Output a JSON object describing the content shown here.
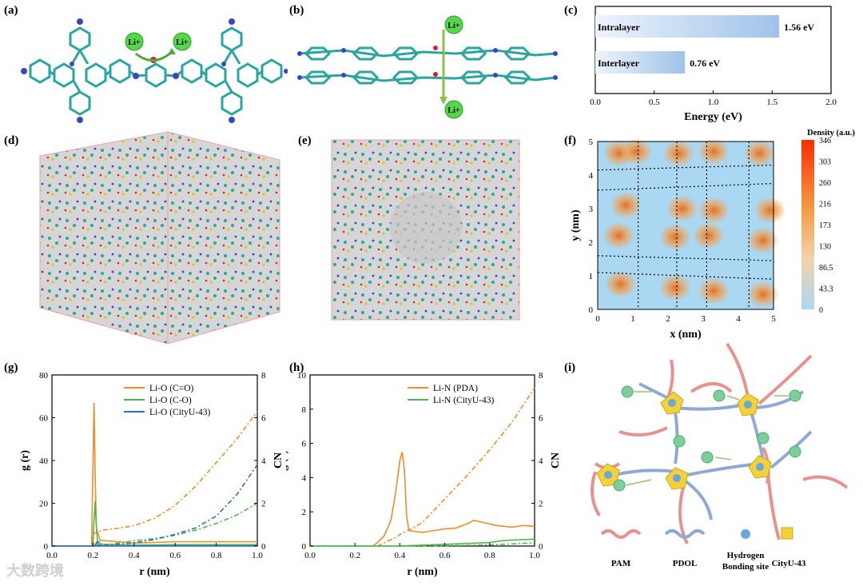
{
  "panel_labels": [
    "(a)",
    "(b)",
    "(c)",
    "(d)",
    "(e)",
    "(f)",
    "(g)",
    "(h)",
    "(i)"
  ],
  "ions": {
    "li": "Li+"
  },
  "chart_data": [
    {
      "id": "c",
      "type": "bar",
      "orientation": "horizontal",
      "categories": [
        "Intralayer",
        "Interlayer"
      ],
      "values": [
        1.56,
        0.76
      ],
      "value_labels": [
        "1.56 eV",
        "0.76 eV"
      ],
      "xlabel": "Energy (eV)",
      "xlim": [
        0.0,
        2.0
      ],
      "xticks": [
        "0.0",
        "0.5",
        "1.0",
        "1.5",
        "2.0"
      ],
      "bar_color": "#9fc3ea"
    },
    {
      "id": "f",
      "type": "heatmap",
      "xlabel": "x (nm)",
      "ylabel": "y (nm)",
      "xlim": [
        0,
        5
      ],
      "ylim": [
        0,
        5
      ],
      "xticks": [
        "0",
        "1",
        "2",
        "3",
        "4",
        "5"
      ],
      "yticks": [
        "0",
        "1",
        "2",
        "3",
        "4",
        "5"
      ],
      "colorbar_title": "Density (a.u.)",
      "colorbar_ticks": [
        "346",
        "303",
        "260",
        "216",
        "173",
        "130",
        "86.5",
        "43.3",
        "0"
      ],
      "colors": {
        "low": "#aad8f2",
        "high": "#ff2a00"
      },
      "clusters": [
        [
          0.6,
          4.65
        ],
        [
          1.1,
          4.7
        ],
        [
          2.3,
          4.65
        ],
        [
          3.3,
          4.7
        ],
        [
          4.6,
          4.65
        ],
        [
          0.8,
          3.1
        ],
        [
          2.4,
          3.0
        ],
        [
          3.3,
          2.95
        ],
        [
          4.9,
          2.95
        ],
        [
          0.6,
          2.2
        ],
        [
          2.2,
          2.15
        ],
        [
          3.15,
          2.2
        ],
        [
          4.7,
          2.05
        ],
        [
          0.65,
          0.75
        ],
        [
          2.2,
          0.65
        ],
        [
          3.3,
          0.55
        ],
        [
          4.7,
          0.45
        ]
      ]
    },
    {
      "id": "g",
      "type": "line",
      "xlabel": "r (nm)",
      "ylabel": "g (r)",
      "y2label": "CN",
      "xlim": [
        0.0,
        1.0
      ],
      "ylim": [
        0,
        80
      ],
      "y2lim": [
        0,
        8
      ],
      "xticks": [
        "0.0",
        "0.2",
        "0.4",
        "0.6",
        "0.8",
        "1.0"
      ],
      "yticks": [
        "0",
        "20",
        "40",
        "60",
        "80"
      ],
      "y2ticks": [
        "0",
        "2",
        "4",
        "6",
        "8"
      ],
      "series": [
        {
          "name": "Li-O (C=O)",
          "color": "#f08c2a",
          "peak_r": 0.205,
          "peak_g": 67,
          "cn": [
            [
              0.2,
              0
            ],
            [
              0.205,
              0.6
            ],
            [
              0.25,
              0.75
            ],
            [
              0.3,
              0.8
            ],
            [
              0.4,
              0.95
            ],
            [
              0.5,
              1.3
            ],
            [
              0.6,
              1.9
            ],
            [
              0.7,
              2.8
            ],
            [
              0.8,
              3.9
            ],
            [
              0.9,
              5.0
            ],
            [
              1.0,
              6.3
            ]
          ]
        },
        {
          "name": "Li-O (C-O)",
          "color": "#4cb84c",
          "peak_r": 0.21,
          "peak_g": 21,
          "cn": [
            [
              0.2,
              0
            ],
            [
              0.21,
              0.05
            ],
            [
              0.3,
              0.1
            ],
            [
              0.4,
              0.25
            ],
            [
              0.5,
              0.35
            ],
            [
              0.6,
              0.5
            ],
            [
              0.7,
              0.75
            ],
            [
              0.8,
              1.05
            ],
            [
              0.9,
              1.45
            ],
            [
              1.0,
              2.0
            ]
          ]
        },
        {
          "name": "Li-O (CityU-43)",
          "color": "#2f6cc8",
          "peak_r": 0.22,
          "peak_g": 2,
          "cn": [
            [
              0.2,
              0
            ],
            [
              0.3,
              0.05
            ],
            [
              0.4,
              0.15
            ],
            [
              0.5,
              0.3
            ],
            [
              0.6,
              0.55
            ],
            [
              0.7,
              0.85
            ],
            [
              0.8,
              1.4
            ],
            [
              0.9,
              2.4
            ],
            [
              1.0,
              3.8
            ]
          ]
        }
      ]
    },
    {
      "id": "h",
      "type": "line",
      "xlabel": "r (nm)",
      "ylabel": "g (r)",
      "y2label": "CN",
      "xlim": [
        0.0,
        1.0
      ],
      "ylim": [
        0,
        10
      ],
      "y2lim": [
        0,
        8
      ],
      "xticks": [
        "0.0",
        "0.2",
        "0.4",
        "0.6",
        "0.8",
        "1.0"
      ],
      "yticks": [
        "0",
        "2",
        "4",
        "6",
        "8",
        "10"
      ],
      "y2ticks": [
        "0",
        "2",
        "4",
        "6",
        "8"
      ],
      "series": [
        {
          "name": "Li-N (PDA)",
          "color": "#f08c2a",
          "g": [
            [
              0.28,
              0
            ],
            [
              0.3,
              0.2
            ],
            [
              0.33,
              0.6
            ],
            [
              0.36,
              1.5
            ],
            [
              0.38,
              3.0
            ],
            [
              0.4,
              5.0
            ],
            [
              0.41,
              5.5
            ],
            [
              0.42,
              4.5
            ],
            [
              0.43,
              1.8
            ],
            [
              0.44,
              0.9
            ],
            [
              0.5,
              0.8
            ],
            [
              0.55,
              0.9
            ],
            [
              0.6,
              1.0
            ],
            [
              0.65,
              1.05
            ],
            [
              0.7,
              1.3
            ],
            [
              0.73,
              1.5
            ],
            [
              0.78,
              1.35
            ],
            [
              0.83,
              1.2
            ],
            [
              0.9,
              1.1
            ],
            [
              0.95,
              1.2
            ],
            [
              1.0,
              1.15
            ]
          ],
          "cn": [
            [
              0.3,
              0
            ],
            [
              0.38,
              0.4
            ],
            [
              0.41,
              0.6
            ],
            [
              0.45,
              0.8
            ],
            [
              0.5,
              1.1
            ],
            [
              0.6,
              2.2
            ],
            [
              0.7,
              3.3
            ],
            [
              0.8,
              4.5
            ],
            [
              0.9,
              5.8
            ],
            [
              1.0,
              7.4
            ]
          ]
        },
        {
          "name": "Li-N (CityU-43)",
          "color": "#4cb84c",
          "g": [
            [
              0.0,
              0
            ],
            [
              0.4,
              0
            ],
            [
              0.5,
              0.05
            ],
            [
              0.6,
              0.1
            ],
            [
              0.7,
              0.15
            ],
            [
              0.8,
              0.2
            ],
            [
              0.85,
              0.3
            ],
            [
              0.9,
              0.35
            ],
            [
              1.0,
              0.4
            ]
          ],
          "cn": [
            [
              0.0,
              0
            ],
            [
              0.5,
              0
            ],
            [
              0.8,
              0.05
            ],
            [
              1.0,
              0.15
            ]
          ]
        }
      ]
    }
  ],
  "schematic_i": {
    "legend": [
      "PAM",
      "PDOL",
      "Hydrogen",
      "Bonding site",
      "CityU-43"
    ]
  },
  "watermark": "大数跨境"
}
